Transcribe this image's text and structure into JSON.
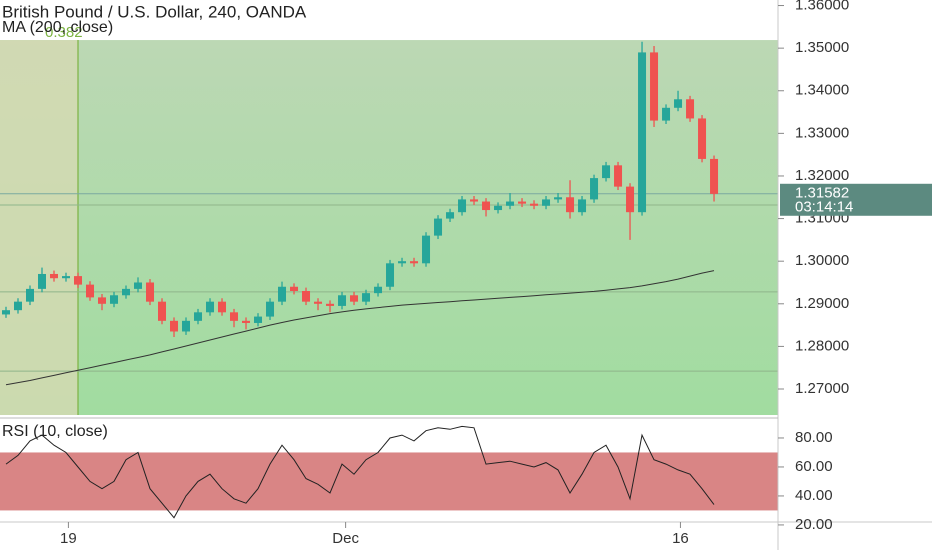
{
  "chart_data": {
    "type": "candlestick",
    "title": "British Pound / U.S. Dollar, 240, OANDA",
    "indicator_label": "MA (200, close)",
    "colors": {
      "up": "#26a69a",
      "down": "#ef5350",
      "ma": "#333333",
      "fib": "#7cb342"
    },
    "open": [
      1.2875,
      1.2885,
      1.2905,
      1.2935,
      1.297,
      1.296,
      1.2965,
      1.2945,
      1.2915,
      1.29,
      1.292,
      1.2935,
      1.295,
      1.2905,
      1.286,
      1.2835,
      1.286,
      1.288,
      1.2905,
      1.288,
      1.286,
      1.2855,
      1.287,
      1.2905,
      1.294,
      1.293,
      1.2905,
      1.29,
      1.2895,
      1.292,
      1.2905,
      1.2925,
      1.294,
      1.2995,
      1.3,
      1.2995,
      1.306,
      1.31,
      1.3115,
      1.3145,
      1.314,
      1.312,
      1.313,
      1.314,
      1.3135,
      1.313,
      1.3145,
      1.315,
      1.3115,
      1.3145,
      1.3195,
      1.3225,
      1.3175,
      1.3115,
      1.349,
      1.333,
      1.336,
      1.338,
      1.3335,
      1.324
    ],
    "high": [
      1.2893,
      1.2913,
      1.2943,
      1.2985,
      1.2978,
      1.2973,
      1.2973,
      1.2953,
      1.2923,
      1.2928,
      1.2943,
      1.2962,
      1.2958,
      1.2913,
      1.2868,
      1.2868,
      1.2888,
      1.2913,
      1.2913,
      1.2888,
      1.2868,
      1.2878,
      1.2913,
      1.2952,
      1.2948,
      1.2938,
      1.2913,
      1.2908,
      1.2928,
      1.2928,
      1.2933,
      1.2948,
      1.3003,
      1.3008,
      1.3008,
      1.3068,
      1.3108,
      1.3123,
      1.3153,
      1.3153,
      1.3148,
      1.3138,
      1.316,
      1.3148,
      1.3143,
      1.3153,
      1.316,
      1.319,
      1.3153,
      1.3203,
      1.3233,
      1.3233,
      1.3183,
      1.3515,
      1.3505,
      1.3368,
      1.34,
      1.3388,
      1.3343,
      1.3248
    ],
    "low": [
      1.2867,
      1.2877,
      1.2897,
      1.2927,
      1.2952,
      1.2952,
      1.2937,
      1.2907,
      1.2885,
      1.2892,
      1.2912,
      1.2927,
      1.2897,
      1.2852,
      1.2822,
      1.2827,
      1.2852,
      1.2872,
      1.2872,
      1.2845,
      1.284,
      1.2847,
      1.2862,
      1.2897,
      1.2922,
      1.2897,
      1.2885,
      1.288,
      1.2887,
      1.2897,
      1.2897,
      1.2917,
      1.2932,
      1.2987,
      1.2987,
      1.2987,
      1.3052,
      1.3092,
      1.3107,
      1.3132,
      1.3105,
      1.3112,
      1.3122,
      1.3127,
      1.3122,
      1.3122,
      1.3137,
      1.31,
      1.3107,
      1.3137,
      1.3187,
      1.3167,
      1.305,
      1.3107,
      1.3315,
      1.3322,
      1.3352,
      1.3327,
      1.3232,
      1.314
    ],
    "close": [
      1.2885,
      1.2905,
      1.2935,
      1.297,
      1.296,
      1.2965,
      1.2945,
      1.2915,
      1.29,
      1.292,
      1.2935,
      1.295,
      1.2905,
      1.286,
      1.2835,
      1.286,
      1.288,
      1.2905,
      1.288,
      1.286,
      1.2855,
      1.287,
      1.2905,
      1.294,
      1.293,
      1.2905,
      1.29,
      1.2895,
      1.292,
      1.2905,
      1.2925,
      1.294,
      1.2995,
      1.3,
      1.2995,
      1.306,
      1.31,
      1.3115,
      1.3145,
      1.314,
      1.312,
      1.313,
      1.314,
      1.3135,
      1.313,
      1.3145,
      1.315,
      1.3115,
      1.3145,
      1.3195,
      1.3225,
      1.3175,
      1.3115,
      1.349,
      1.333,
      1.336,
      1.338,
      1.3335,
      1.324,
      1.3158
    ],
    "ma": [
      1.271,
      1.2715,
      1.272,
      1.2726,
      1.2732,
      1.2738,
      1.2744,
      1.275,
      1.2756,
      1.2762,
      1.2768,
      1.2774,
      1.278,
      1.2787,
      1.2794,
      1.2801,
      1.2808,
      1.2815,
      1.2822,
      1.2829,
      1.2836,
      1.2843,
      1.285,
      1.2856,
      1.2862,
      1.2867,
      1.2872,
      1.2877,
      1.2881,
      1.2885,
      1.2888,
      1.2891,
      1.2894,
      1.2897,
      1.2899,
      1.2901,
      1.2903,
      1.2905,
      1.2907,
      1.2909,
      1.2911,
      1.2913,
      1.2915,
      1.2917,
      1.2919,
      1.2921,
      1.2923,
      1.2925,
      1.2927,
      1.2929,
      1.2932,
      1.2935,
      1.2938,
      1.2942,
      1.2947,
      1.2952,
      1.2958,
      1.2965,
      1.2972,
      1.2978
    ],
    "xlim": [
      -0.5,
      64.33
    ],
    "xticks": [
      {
        "value": 5.2,
        "label": "19"
      },
      {
        "value": 28.3,
        "label": "Dec"
      },
      {
        "value": 56.2,
        "label": "16"
      }
    ],
    "ylim": [
      1.2639,
      1.3613
    ],
    "yticks": [
      {
        "value": 1.36,
        "label": "1.36000"
      },
      {
        "value": 1.35,
        "label": "1.35000"
      },
      {
        "value": 1.34,
        "label": "1.34000"
      },
      {
        "value": 1.33,
        "label": "1.33000"
      },
      {
        "value": 1.32,
        "label": "1.32000"
      },
      {
        "value": 1.31,
        "label": "1.31000"
      },
      {
        "value": 1.3,
        "label": "1.30000"
      },
      {
        "value": 1.29,
        "label": "1.29000"
      },
      {
        "value": 1.28,
        "label": "1.28000"
      },
      {
        "value": 1.27,
        "label": "1.27000"
      }
    ],
    "last_price": 1.31582,
    "countdown": "03:14:14",
    "fib": {
      "label": "0.382",
      "top": 1.3519,
      "start": 6,
      "levels": [
        1.3132,
        1.2928,
        1.2742
      ]
    },
    "rsi": {
      "label": "RSI (10, close)",
      "values": [
        62,
        68,
        78,
        82,
        75,
        70,
        60,
        50,
        45,
        50,
        65,
        70,
        45,
        35,
        25,
        40,
        50,
        55,
        45,
        38,
        35,
        45,
        62,
        75,
        65,
        52,
        48,
        42,
        62,
        55,
        65,
        70,
        80,
        82,
        78,
        85,
        87,
        86,
        88,
        87,
        62,
        63,
        64,
        62,
        60,
        63,
        58,
        42,
        55,
        70,
        75,
        60,
        38,
        82,
        65,
        62,
        58,
        55,
        45,
        34
      ],
      "band": [
        30,
        70
      ],
      "band_color": "#d98585",
      "ylim": [
        23.4,
        92.4
      ],
      "yticks": [
        {
          "value": 80,
          "label": "80.00"
        },
        {
          "value": 60,
          "label": "60.00"
        },
        {
          "value": 40,
          "label": "40.00"
        },
        {
          "value": 20,
          "label": "20.00"
        }
      ]
    }
  }
}
